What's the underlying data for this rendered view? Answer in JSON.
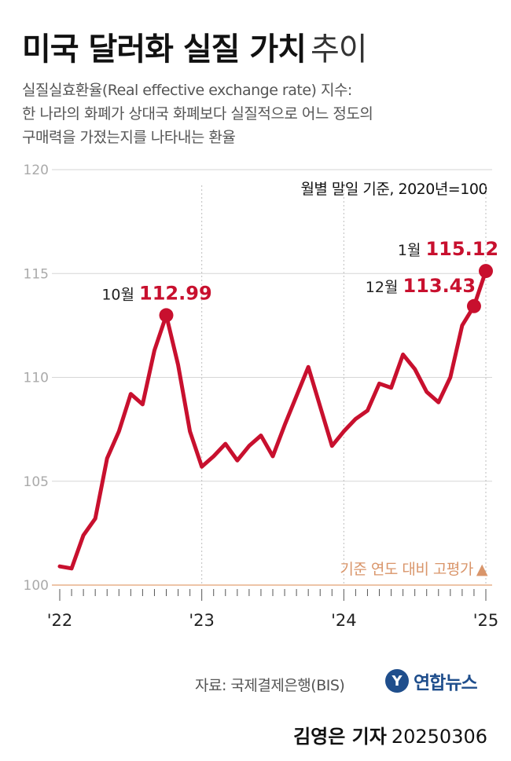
{
  "header": {
    "title_main": "미국 달러화 실질 가치",
    "title_sub": "추이",
    "description": [
      "실질실효환율(Real effective exchange rate) 지수:",
      "한 나라의 화폐가 상대국 화폐보다 실질적으로 어느 정도의",
      "구매력을 가졌는지를 나타내는 환율"
    ]
  },
  "basis_note": "월별 말일 기준, 2020년=100",
  "legend_note": "기준 연도 대비 고평가",
  "legend_marker": "▲",
  "source": "자료: 국제결제은행(BIS)",
  "logo": {
    "mark": "Y",
    "text": "연합뉴스"
  },
  "byline": {
    "name": "김영은 기자",
    "date": "20250306"
  },
  "colors": {
    "line": "#c8102e",
    "baseline": "#e8b08a",
    "grid": "#d6d6d6",
    "accent_text": "#d9956a"
  },
  "chart_data": {
    "type": "line",
    "series": [
      {
        "values": [
          100.9,
          100.8,
          102.4,
          103.2,
          106.1,
          107.4,
          109.2,
          108.7,
          111.3,
          112.99,
          110.6,
          107.4,
          105.7,
          106.2,
          106.8,
          106.0,
          106.7,
          107.2,
          106.2,
          107.7,
          109.1,
          110.5,
          108.6,
          106.7,
          107.4,
          108.0,
          108.4,
          109.7,
          109.5,
          111.1,
          110.4,
          109.3,
          108.8,
          110.0,
          112.5,
          113.43,
          115.12
        ]
      }
    ],
    "x_start": "2022-01",
    "x_end": "2025-01",
    "x_tick_labels": [
      "'22",
      "'23",
      "'24",
      "'25"
    ],
    "y_ticks": [
      100,
      105,
      110,
      115,
      120
    ],
    "ylim": [
      100,
      120
    ],
    "baseline": 100,
    "grid": "horizontal",
    "annotations": [
      {
        "index": 9,
        "month_label": "10월",
        "value_label": "112.99"
      },
      {
        "index": 35,
        "month_label": "12월",
        "value_label": "113.43"
      },
      {
        "index": 36,
        "month_label": "1월",
        "value_label": "115.12"
      }
    ]
  }
}
